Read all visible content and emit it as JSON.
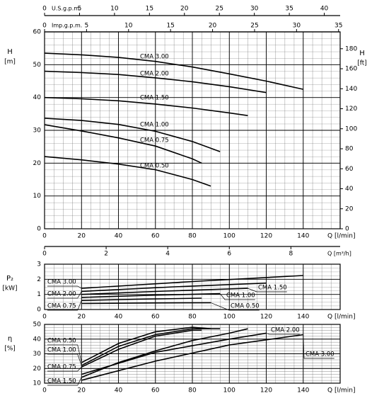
{
  "chart_data": [
    {
      "type": "line",
      "ylabel": "H",
      "yunit": "[m]",
      "y2label": "H",
      "y2unit": "[ft]",
      "xlabel": "Q [l/min]",
      "xlim": [
        0,
        160
      ],
      "xticks": [
        0,
        20,
        40,
        60,
        80,
        100,
        120,
        140
      ],
      "ylim": [
        0,
        60
      ],
      "yticks": [
        0,
        10,
        20,
        30,
        40,
        50,
        60
      ],
      "y2lim": [
        0,
        196.85
      ],
      "y2ticks": [
        0,
        20,
        40,
        60,
        80,
        100,
        120,
        140,
        160,
        180
      ],
      "x2": {
        "label": "U.S.g.p.m.",
        "lim": [
          0,
          42.27
        ],
        "ticks": [
          0,
          5,
          10,
          15,
          20,
          25,
          30,
          35,
          40
        ]
      },
      "x3": {
        "label": "Imp.g.p.m.",
        "lim": [
          0,
          35.19
        ],
        "ticks": [
          0,
          5,
          10,
          15,
          20,
          25,
          30,
          35
        ]
      },
      "x4": {
        "label": "Q [m³/h]",
        "lim": [
          0,
          9.6
        ],
        "ticks": [
          0,
          2,
          4,
          6,
          8
        ]
      },
      "minor_grid": [
        5,
        2
      ],
      "series": [
        {
          "name": "CMA 3.00",
          "color": "#000000",
          "x": [
            0,
            20,
            40,
            60,
            80,
            100,
            120,
            140
          ],
          "values": [
            53.5,
            53,
            52.2,
            51,
            49.3,
            47.2,
            45,
            42.5
          ]
        },
        {
          "name": "CMA 2.00",
          "color": "#000000",
          "x": [
            0,
            20,
            40,
            60,
            80,
            100,
            120
          ],
          "values": [
            48,
            47.6,
            47,
            46,
            44.8,
            43.3,
            41.5
          ]
        },
        {
          "name": "CMA 1.50",
          "color": "#000000",
          "x": [
            0,
            20,
            40,
            60,
            80,
            100,
            110
          ],
          "values": [
            40,
            39.6,
            39,
            38,
            36.8,
            35.3,
            34.5
          ]
        },
        {
          "name": "CMA 1.00",
          "color": "#000000",
          "x": [
            0,
            20,
            40,
            60,
            80,
            95
          ],
          "values": [
            33.7,
            33,
            31.8,
            29.7,
            26.6,
            23.5
          ]
        },
        {
          "name": "CMA 0.75",
          "color": "#000000",
          "x": [
            0,
            20,
            40,
            60,
            80,
            85
          ],
          "values": [
            31.7,
            29.8,
            27.7,
            25.2,
            21.3,
            20
          ]
        },
        {
          "name": "CMA 0.50",
          "color": "#000000",
          "x": [
            0,
            20,
            40,
            60,
            80,
            90
          ],
          "values": [
            22,
            21,
            19.7,
            18,
            15,
            13
          ]
        }
      ]
    },
    {
      "type": "line",
      "ylabel": "P₂",
      "yunit": "[kW]",
      "xlabel": "Q [l/min]",
      "xlim": [
        0,
        160
      ],
      "xticks": [
        0,
        20,
        40,
        60,
        80,
        100,
        120,
        140
      ],
      "ylim": [
        0,
        3
      ],
      "yticks": [
        0,
        1,
        2,
        3
      ],
      "minor_grid": [
        5,
        0.25
      ],
      "series": [
        {
          "name": "CMA 3.00",
          "color": "#000000",
          "x": [
            20,
            80,
            140
          ],
          "values": [
            1.4,
            1.85,
            2.25
          ]
        },
        {
          "name": "CMA 2.00",
          "color": "#000000",
          "x": [
            20,
            70,
            120
          ],
          "values": [
            1.2,
            1.5,
            1.75
          ]
        },
        {
          "name": "CMA 1.50",
          "color": "#000000",
          "x": [
            20,
            65,
            110
          ],
          "values": [
            1.0,
            1.22,
            1.4
          ]
        },
        {
          "name": "CMA 1.00",
          "color": "#000000",
          "x": [
            20,
            60,
            95
          ],
          "values": [
            0.8,
            0.95,
            1.05
          ]
        },
        {
          "name": "CMA 0.75",
          "color": "#000000",
          "x": [
            20,
            50,
            85
          ],
          "values": [
            0.6,
            0.68,
            0.75
          ]
        },
        {
          "name": "CMA 0.50",
          "color": "#000000",
          "x": [
            20,
            55,
            90
          ],
          "values": [
            0.4,
            0.43,
            0.45
          ]
        }
      ]
    },
    {
      "type": "line",
      "ylabel": "η",
      "yunit": "[%]",
      "xlabel": "Q [l/min]",
      "xlim": [
        0,
        160
      ],
      "xticks": [
        0,
        20,
        40,
        60,
        80,
        100,
        120,
        140
      ],
      "ylim": [
        10,
        50
      ],
      "yticks": [
        10,
        20,
        30,
        40,
        50
      ],
      "minor_grid": [
        5,
        2
      ],
      "series": [
        {
          "name": "CMA 0.50",
          "color": "#000000",
          "x": [
            20,
            40,
            60,
            80,
            90
          ],
          "values": [
            24,
            37,
            45,
            48,
            47
          ]
        },
        {
          "name": "CMA 1.00",
          "color": "#000000",
          "x": [
            20,
            40,
            60,
            80,
            95
          ],
          "values": [
            22,
            35,
            43,
            47,
            47
          ]
        },
        {
          "name": "CMA 0.75",
          "color": "#000000",
          "x": [
            20,
            40,
            60,
            80,
            85
          ],
          "values": [
            21,
            33,
            42,
            46,
            46
          ]
        },
        {
          "name": "CMA 1.50",
          "color": "#000000",
          "x": [
            20,
            40,
            60,
            80,
            100,
            110
          ],
          "values": [
            14,
            24,
            32,
            39,
            44,
            47
          ]
        },
        {
          "name": "CMA 2.00",
          "color": "#000000",
          "x": [
            20,
            60,
            100,
            120
          ],
          "values": [
            16,
            31,
            40,
            44
          ]
        },
        {
          "name": "CMA 3.00",
          "color": "#000000",
          "x": [
            20,
            60,
            100,
            140
          ],
          "values": [
            12,
            25,
            36,
            43
          ]
        }
      ]
    }
  ]
}
